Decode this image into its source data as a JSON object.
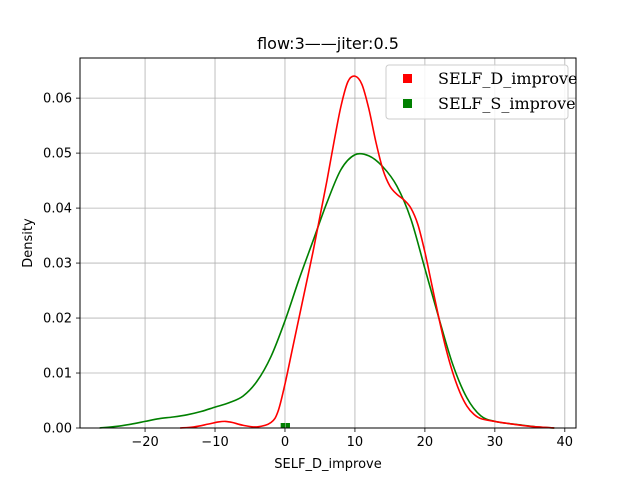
{
  "chart_data": {
    "type": "line",
    "title": "flow:3——jiter:0.5",
    "xlabel": "SELF_D_improve",
    "ylabel": "Density",
    "xlim": [
      -29.3,
      41.6
    ],
    "ylim": [
      0,
      0.0673
    ],
    "xticks": [
      -20,
      -10,
      0,
      10,
      20,
      30,
      40
    ],
    "yticks": [
      0.0,
      0.01,
      0.02,
      0.03,
      0.04,
      0.05,
      0.06
    ],
    "xtick_labels": [
      "−20",
      "−10",
      "0",
      "10",
      "20",
      "30",
      "40"
    ],
    "ytick_labels": [
      "0.00",
      "0.01",
      "0.02",
      "0.03",
      "0.04",
      "0.05",
      "0.06"
    ],
    "grid": true,
    "legend_position": "top-right",
    "series": [
      {
        "name": "SELF_D_improve",
        "color": "#ff0000",
        "x": [
          -15,
          -13,
          -11,
          -9.5,
          -8.5,
          -7.5,
          -6,
          -4,
          -2,
          -1,
          0,
          1,
          2,
          3,
          4,
          5,
          6,
          7,
          8,
          9,
          10,
          11,
          12,
          13,
          14,
          15,
          16,
          17,
          18,
          19,
          20,
          21,
          22,
          23,
          24,
          25,
          26,
          27,
          28,
          30,
          32,
          35,
          38.5
        ],
        "y": [
          0.0,
          0.0002,
          0.0007,
          0.0011,
          0.0012,
          0.001,
          0.0005,
          0.0002,
          0.001,
          0.003,
          0.008,
          0.014,
          0.02,
          0.026,
          0.032,
          0.0385,
          0.045,
          0.052,
          0.0585,
          0.063,
          0.064,
          0.0625,
          0.058,
          0.052,
          0.047,
          0.044,
          0.0425,
          0.0415,
          0.04,
          0.037,
          0.032,
          0.026,
          0.02,
          0.0145,
          0.01,
          0.0065,
          0.004,
          0.0025,
          0.0017,
          0.0012,
          0.0008,
          0.0003,
          0.0
        ]
      },
      {
        "name": "SELF_S_improve",
        "color": "#008000",
        "x": [
          -26.5,
          -24,
          -22,
          -20,
          -18,
          -16,
          -14,
          -12,
          -10,
          -8,
          -6,
          -4,
          -2,
          0,
          2,
          4,
          6,
          8,
          10,
          12,
          14,
          16,
          18,
          20,
          22,
          24,
          26,
          28,
          30,
          32,
          34,
          36,
          38.5
        ],
        "y": [
          0.0,
          0.0003,
          0.0007,
          0.0012,
          0.0017,
          0.002,
          0.0024,
          0.003,
          0.0038,
          0.0046,
          0.0058,
          0.0085,
          0.013,
          0.0195,
          0.027,
          0.034,
          0.041,
          0.047,
          0.0497,
          0.0495,
          0.0475,
          0.044,
          0.038,
          0.029,
          0.02,
          0.0115,
          0.0055,
          0.0022,
          0.0012,
          0.0008,
          0.0005,
          0.0002,
          0.0
        ]
      }
    ],
    "rug_points": [
      -0.3,
      0.4
    ]
  }
}
